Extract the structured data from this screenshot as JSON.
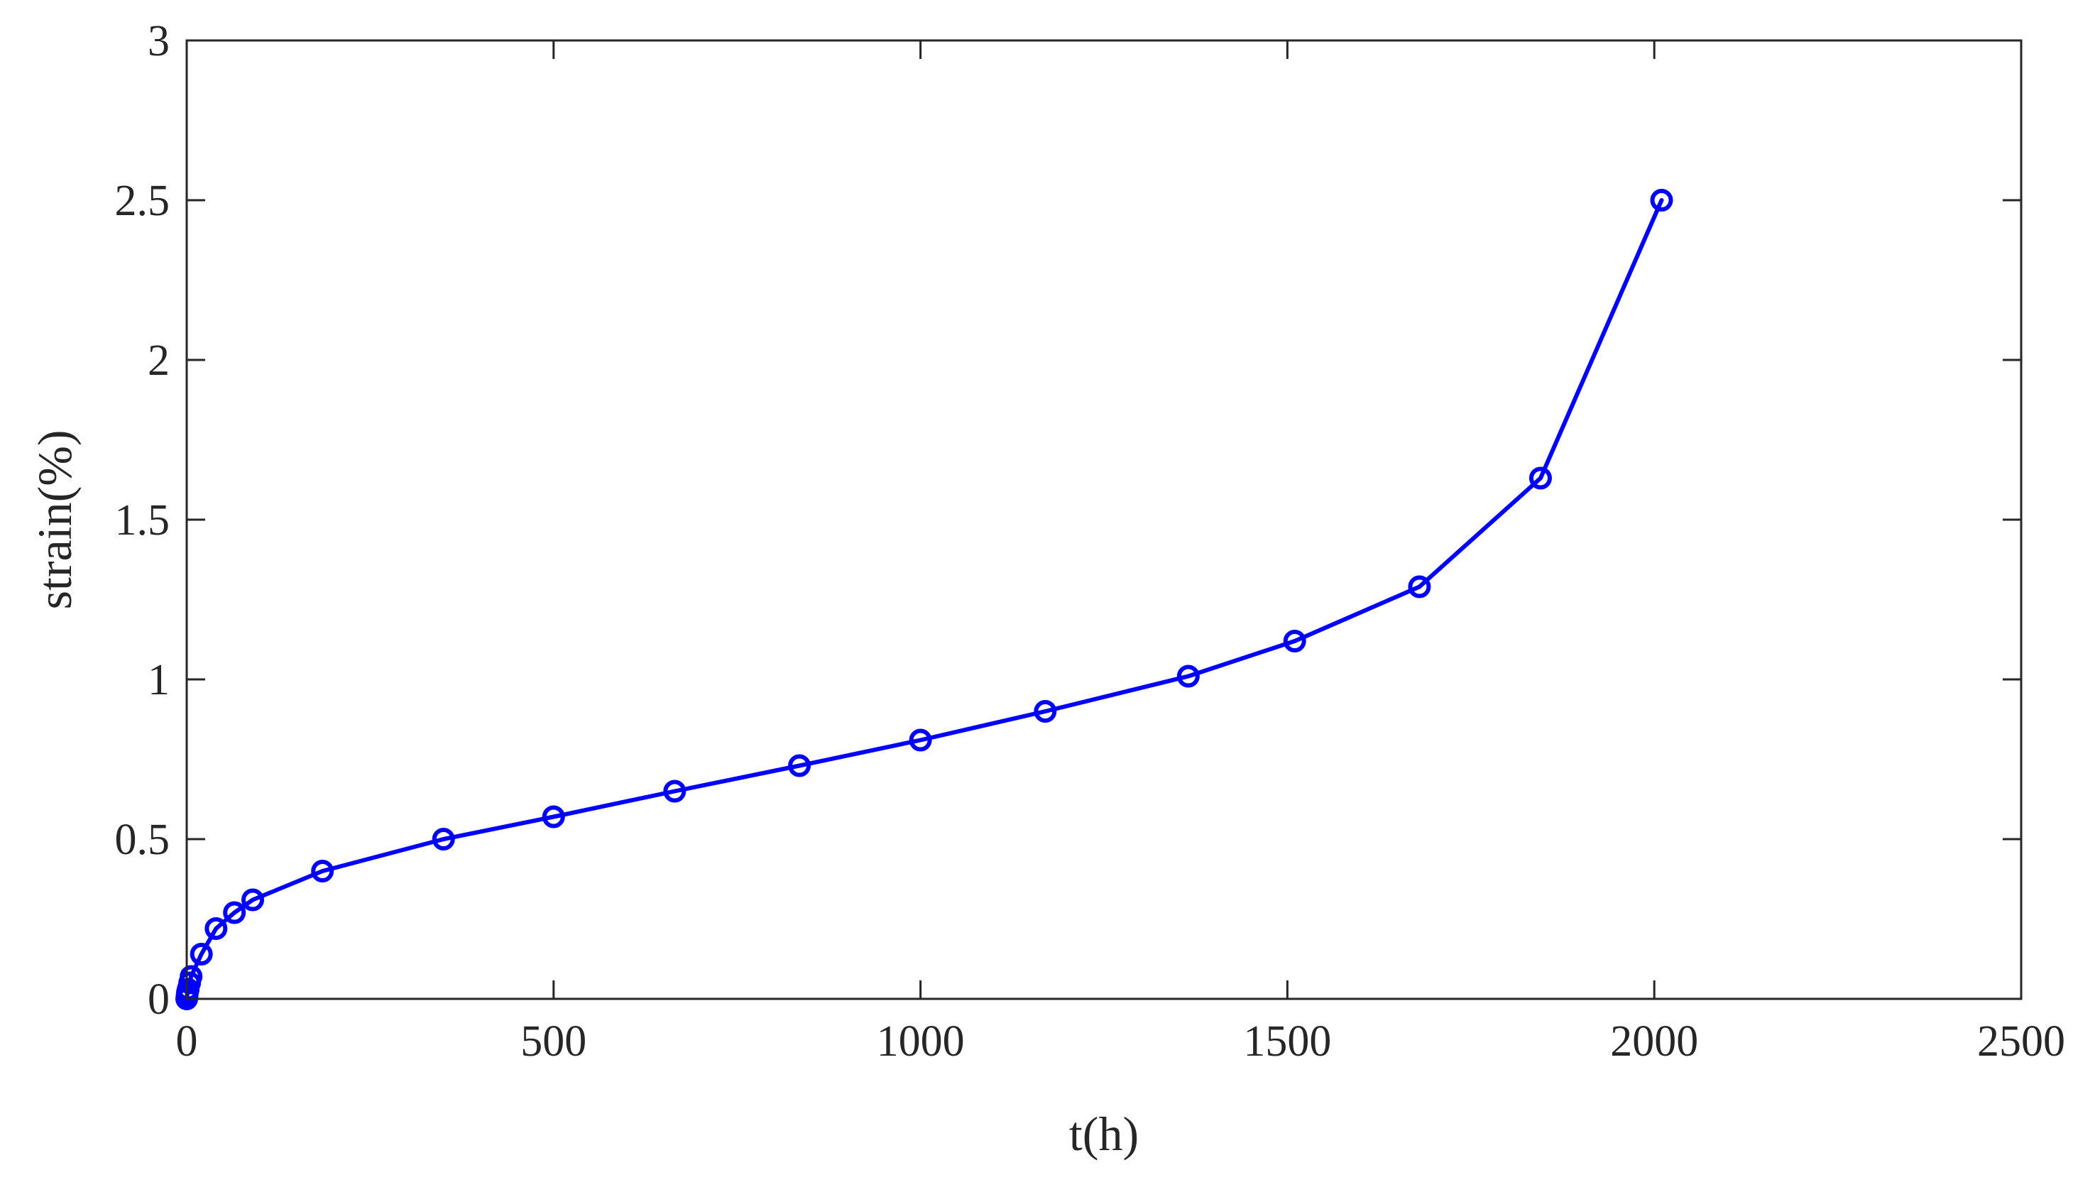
{
  "chart_data": {
    "type": "line",
    "title": "",
    "xlabel": "t(h)",
    "ylabel": "strain(%)",
    "xlim": [
      0,
      2500
    ],
    "ylim": [
      0,
      3
    ],
    "xticks": [
      0,
      500,
      1000,
      1500,
      2000,
      2500
    ],
    "yticks": [
      0,
      0.5,
      1,
      1.5,
      2,
      2.5,
      3
    ],
    "xtick_labels": [
      "0",
      "500",
      "1000",
      "1500",
      "2000",
      "2500"
    ],
    "ytick_labels": [
      "0",
      "0.5",
      "1",
      "1.5",
      "2",
      "2.5",
      "3"
    ],
    "grid": false,
    "legend": "none",
    "marker": "circle",
    "colors": {
      "series": "#0000ff",
      "axes": "#262626",
      "background": "#ffffff"
    },
    "series": [
      {
        "x": [
          0,
          0.5,
          1,
          2,
          4,
          6,
          20,
          40,
          65,
          90,
          185,
          350,
          500,
          665,
          835,
          1000,
          1170,
          1365,
          1510,
          1680,
          1845,
          2010
        ],
        "y": [
          0,
          0.01,
          0.02,
          0.03,
          0.05,
          0.07,
          0.14,
          0.22,
          0.27,
          0.31,
          0.4,
          0.5,
          0.57,
          0.65,
          0.73,
          0.81,
          0.9,
          1.01,
          1.12,
          1.29,
          1.63,
          2.5
        ]
      }
    ]
  }
}
